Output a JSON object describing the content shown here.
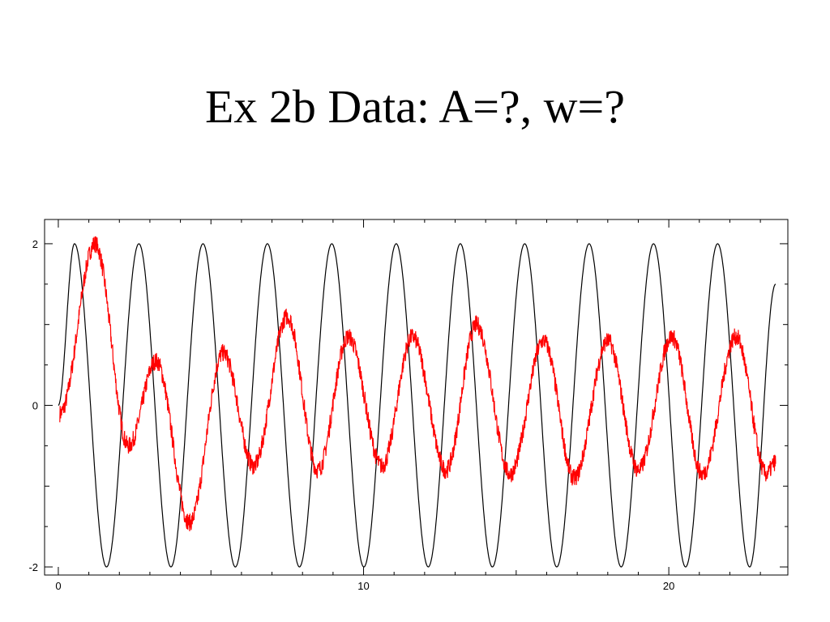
{
  "slide": {
    "title": "Ex 2b Data: A=?, w=?"
  },
  "chart_data": {
    "type": "line",
    "title": "",
    "xlabel": "",
    "ylabel": "",
    "xlim": [
      -0.45,
      23.9
    ],
    "ylim": [
      -2.1,
      2.3
    ],
    "grid": false,
    "x_ticks": [
      0,
      10,
      20
    ],
    "y_ticks": [
      -2,
      0,
      2
    ],
    "x_tick_labels": [
      "0",
      "10",
      "20"
    ],
    "y_tick_labels": [
      "-2",
      "0",
      "2"
    ],
    "series": [
      {
        "color": "#000000",
        "description_function": "2*sin(2.98*x)",
        "x_range": [
          0,
          23.5
        ],
        "peaks_x": [
          0.53,
          2.64,
          4.74,
          6.85,
          8.96,
          11.07,
          13.17,
          15.28,
          17.39,
          19.5,
          21.6
        ],
        "peak_value": 2.0,
        "troughs_x": [
          1.58,
          3.69,
          5.8,
          7.9,
          10.01,
          12.12,
          14.22,
          16.33,
          18.44,
          20.55,
          22.65
        ],
        "trough_value": -2.0,
        "end_value": 1.5
      },
      {
        "color": "#ff0000",
        "x_range": [
          0,
          23.5
        ],
        "peaks": [
          [
            1.2,
            2.0
          ],
          [
            3.2,
            0.55
          ],
          [
            5.4,
            0.65
          ],
          [
            7.5,
            1.1
          ],
          [
            9.5,
            0.85
          ],
          [
            11.6,
            0.85
          ],
          [
            13.7,
            1.0
          ],
          [
            15.9,
            0.8
          ],
          [
            18.0,
            0.8
          ],
          [
            20.1,
            0.85
          ],
          [
            22.2,
            0.85
          ]
        ],
        "troughs": [
          [
            0.05,
            -0.1
          ],
          [
            2.3,
            -0.5
          ],
          [
            4.3,
            -1.45
          ],
          [
            6.4,
            -0.75
          ],
          [
            8.5,
            -0.8
          ],
          [
            10.6,
            -0.75
          ],
          [
            12.7,
            -0.8
          ],
          [
            14.8,
            -0.85
          ],
          [
            16.9,
            -0.9
          ],
          [
            19.0,
            -0.8
          ],
          [
            21.1,
            -0.85
          ],
          [
            23.2,
            -0.85
          ]
        ],
        "end_value": -0.7
      }
    ]
  }
}
